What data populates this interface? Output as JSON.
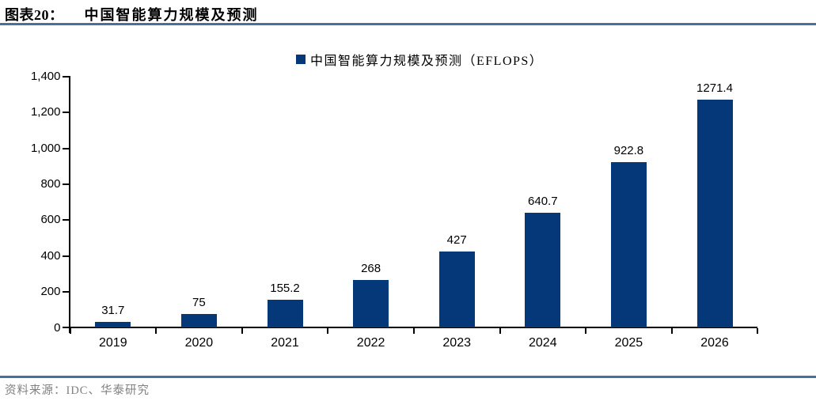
{
  "header": {
    "figure_label": "图表20：",
    "title": "中国智能算力规模及预测"
  },
  "legend": {
    "label": "中国智能算力规模及预测（EFLOPS）"
  },
  "chart_data": {
    "type": "bar",
    "title": "中国智能算力规模及预测",
    "series_name": "中国智能算力规模及预测（EFLOPS）",
    "categories": [
      "2019",
      "2020",
      "2021",
      "2022",
      "2023",
      "2024",
      "2025",
      "2026"
    ],
    "values": [
      31.7,
      75,
      155.2,
      268,
      427,
      640.7,
      922.8,
      1271.4
    ],
    "data_labels": [
      "31.7",
      "75",
      "155.2",
      "268",
      "427",
      "640.7",
      "922.8",
      "1271.4"
    ],
    "xlabel": "",
    "ylabel": "",
    "ylim": [
      0,
      1400
    ],
    "ytick_interval": 200,
    "ytick_labels": [
      "0",
      "200",
      "400",
      "600",
      "800",
      "1,000",
      "1,200",
      "1,400"
    ],
    "grid": false,
    "legend_position": "top-center"
  },
  "footer": {
    "source": "资料来源：IDC、华泰研究"
  },
  "colors": {
    "bar": "#043878",
    "rule": "#4a6f9f",
    "axis": "#000000",
    "source_text": "#808080"
  }
}
